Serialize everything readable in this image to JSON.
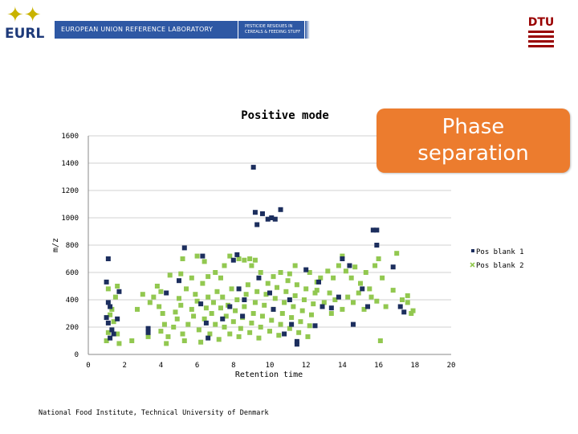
{
  "header": {
    "logo_text": "EURL",
    "banner_main": "EUROPEAN UNION REFERENCE LABORATORY",
    "banner_side_line1": "PESTICIDE RESIDUES IN",
    "banner_side_line2": "CEREALS & FEEDING STUFF",
    "org_logo_text": "DTU"
  },
  "callout": {
    "line1": "Phase",
    "line2": "separation"
  },
  "footer": {
    "text": "National Food Institute, Technical University of Denmark"
  },
  "colors": {
    "banner": "#2e58a4",
    "callout": "#ec7c2e",
    "series1": "#1c2e5e",
    "series2": "#92c850",
    "dtu": "#990000"
  },
  "chart_data": {
    "type": "scatter",
    "title": "Positive mode",
    "xlabel": "Retention time",
    "ylabel": "m/z",
    "xlim": [
      0,
      20
    ],
    "ylim": [
      0,
      1600
    ],
    "xticks": [
      "0",
      "2",
      "4",
      "6",
      "8",
      "10",
      "12",
      "14",
      "16",
      "18",
      "20"
    ],
    "yticks": [
      "0",
      "200",
      "400",
      "600",
      "800",
      "1000",
      "1200",
      "1400",
      "1600"
    ],
    "grid": "horizontal",
    "legend_position": "right",
    "series": [
      {
        "name": "Pos blank 1",
        "marker": "square",
        "color": "#1c2e5e",
        "points": [
          [
            1.1,
            700
          ],
          [
            1.0,
            530
          ],
          [
            1.1,
            380
          ],
          [
            1.2,
            350
          ],
          [
            1.0,
            270
          ],
          [
            1.1,
            230
          ],
          [
            1.2,
            120
          ],
          [
            1.3,
            180
          ],
          [
            1.4,
            150
          ],
          [
            1.6,
            260
          ],
          [
            1.7,
            460
          ],
          [
            3.3,
            190
          ],
          [
            3.3,
            160
          ],
          [
            4.3,
            450
          ],
          [
            5.0,
            540
          ],
          [
            5.3,
            780
          ],
          [
            6.3,
            720
          ],
          [
            6.2,
            370
          ],
          [
            6.5,
            230
          ],
          [
            6.6,
            120
          ],
          [
            7.8,
            350
          ],
          [
            8.0,
            690
          ],
          [
            8.2,
            730
          ],
          [
            8.3,
            480
          ],
          [
            8.5,
            280
          ],
          [
            8.6,
            400
          ],
          [
            9.1,
            1370
          ],
          [
            9.2,
            1040
          ],
          [
            9.3,
            950
          ],
          [
            9.4,
            560
          ],
          [
            9.6,
            1030
          ],
          [
            9.9,
            990
          ],
          [
            10.1,
            1000
          ],
          [
            10.3,
            990
          ],
          [
            10.6,
            1060
          ],
          [
            10.0,
            450
          ],
          [
            10.2,
            330
          ],
          [
            11.1,
            400
          ],
          [
            11.2,
            220
          ],
          [
            11.5,
            95
          ],
          [
            11.5,
            75
          ],
          [
            12.0,
            620
          ],
          [
            12.7,
            530
          ],
          [
            12.9,
            350
          ],
          [
            13.4,
            340
          ],
          [
            14.0,
            700
          ],
          [
            14.4,
            650
          ],
          [
            14.6,
            220
          ],
          [
            15.1,
            480
          ],
          [
            15.7,
            910
          ],
          [
            15.9,
            910
          ],
          [
            15.9,
            800
          ],
          [
            16.8,
            640
          ],
          [
            17.2,
            350
          ],
          [
            17.4,
            310
          ],
          [
            10.8,
            150
          ],
          [
            7.4,
            260
          ],
          [
            12.5,
            210
          ],
          [
            13.8,
            420
          ],
          [
            15.4,
            350
          ]
        ]
      },
      {
        "name": "Pos blank 2",
        "marker": "x",
        "color": "#92c850",
        "points": [
          [
            1.0,
            100
          ],
          [
            1.1,
            160
          ],
          [
            1.2,
            290
          ],
          [
            1.3,
            330
          ],
          [
            1.4,
            240
          ],
          [
            1.5,
            420
          ],
          [
            1.6,
            150
          ],
          [
            1.7,
            80
          ],
          [
            1.1,
            480
          ],
          [
            1.6,
            500
          ],
          [
            3.3,
            130
          ],
          [
            3.6,
            420
          ],
          [
            3.8,
            500
          ],
          [
            4.0,
            460
          ],
          [
            3.9,
            350
          ],
          [
            4.1,
            300
          ],
          [
            4.2,
            220
          ],
          [
            4.0,
            170
          ],
          [
            4.3,
            80
          ],
          [
            4.4,
            130
          ],
          [
            4.7,
            200
          ],
          [
            4.8,
            310
          ],
          [
            4.9,
            260
          ],
          [
            5.0,
            410
          ],
          [
            5.1,
            360
          ],
          [
            5.2,
            150
          ],
          [
            5.3,
            100
          ],
          [
            5.4,
            480
          ],
          [
            5.5,
            220
          ],
          [
            5.2,
            700
          ],
          [
            5.7,
            330
          ],
          [
            5.8,
            280
          ],
          [
            5.9,
            440
          ],
          [
            6.0,
            390
          ],
          [
            6.1,
            180
          ],
          [
            6.2,
            90
          ],
          [
            6.3,
            520
          ],
          [
            6.4,
            260
          ],
          [
            6.5,
            340
          ],
          [
            6.6,
            420
          ],
          [
            6.7,
            150
          ],
          [
            6.8,
            300
          ],
          [
            6.9,
            380
          ],
          [
            7.0,
            220
          ],
          [
            7.1,
            460
          ],
          [
            7.2,
            110
          ],
          [
            7.3,
            340
          ],
          [
            7.4,
            420
          ],
          [
            7.5,
            200
          ],
          [
            7.6,
            280
          ],
          [
            7.7,
            360
          ],
          [
            7.8,
            150
          ],
          [
            7.9,
            480
          ],
          [
            8.0,
            240
          ],
          [
            8.1,
            320
          ],
          [
            8.2,
            400
          ],
          [
            8.3,
            130
          ],
          [
            8.4,
            190
          ],
          [
            8.5,
            270
          ],
          [
            8.6,
            350
          ],
          [
            8.7,
            440
          ],
          [
            8.8,
            510
          ],
          [
            8.9,
            160
          ],
          [
            9.0,
            230
          ],
          [
            9.1,
            300
          ],
          [
            9.2,
            380
          ],
          [
            9.3,
            460
          ],
          [
            9.4,
            120
          ],
          [
            9.5,
            200
          ],
          [
            9.6,
            280
          ],
          [
            9.7,
            360
          ],
          [
            9.8,
            440
          ],
          [
            9.9,
            520
          ],
          [
            10.0,
            170
          ],
          [
            10.1,
            250
          ],
          [
            10.2,
            330
          ],
          [
            10.3,
            410
          ],
          [
            10.4,
            490
          ],
          [
            10.5,
            140
          ],
          [
            10.6,
            220
          ],
          [
            10.7,
            300
          ],
          [
            10.8,
            380
          ],
          [
            10.9,
            460
          ],
          [
            11.0,
            540
          ],
          [
            11.1,
            190
          ],
          [
            11.2,
            270
          ],
          [
            11.3,
            350
          ],
          [
            11.4,
            430
          ],
          [
            11.5,
            510
          ],
          [
            11.6,
            160
          ],
          [
            11.7,
            240
          ],
          [
            11.8,
            320
          ],
          [
            11.9,
            400
          ],
          [
            12.0,
            480
          ],
          [
            12.1,
            130
          ],
          [
            12.2,
            210
          ],
          [
            12.3,
            290
          ],
          [
            12.4,
            370
          ],
          [
            12.5,
            450
          ],
          [
            12.6,
            530
          ],
          [
            8.3,
            700
          ],
          [
            8.6,
            690
          ],
          [
            8.9,
            700
          ],
          [
            9.2,
            690
          ],
          [
            9.0,
            650
          ],
          [
            10.6,
            600
          ],
          [
            11.4,
            650
          ],
          [
            12.2,
            600
          ],
          [
            12.6,
            470
          ],
          [
            5.7,
            560
          ],
          [
            6.0,
            720
          ],
          [
            6.4,
            680
          ],
          [
            7.0,
            600
          ],
          [
            7.5,
            650
          ],
          [
            7.8,
            720
          ],
          [
            13.2,
            610
          ],
          [
            13.5,
            560
          ],
          [
            13.8,
            650
          ],
          [
            14.0,
            720
          ],
          [
            14.2,
            610
          ],
          [
            14.5,
            560
          ],
          [
            14.7,
            640
          ],
          [
            15.0,
            520
          ],
          [
            15.3,
            600
          ],
          [
            15.5,
            480
          ],
          [
            15.8,
            650
          ],
          [
            16.0,
            700
          ],
          [
            16.2,
            560
          ],
          [
            13.0,
            380
          ],
          [
            13.3,
            450
          ],
          [
            13.6,
            400
          ],
          [
            14.0,
            330
          ],
          [
            14.3,
            420
          ],
          [
            14.6,
            380
          ],
          [
            14.9,
            450
          ],
          [
            15.2,
            330
          ],
          [
            15.6,
            420
          ],
          [
            15.9,
            390
          ],
          [
            16.1,
            100
          ],
          [
            16.4,
            350
          ],
          [
            16.8,
            470
          ],
          [
            17.0,
            740
          ],
          [
            17.3,
            400
          ],
          [
            17.6,
            380
          ],
          [
            17.8,
            300
          ],
          [
            17.6,
            430
          ],
          [
            17.9,
            320
          ],
          [
            2.7,
            330
          ],
          [
            2.4,
            100
          ],
          [
            3.0,
            440
          ],
          [
            3.4,
            380
          ],
          [
            13.4,
            300
          ],
          [
            12.8,
            560
          ],
          [
            11.1,
            590
          ],
          [
            9.5,
            600
          ],
          [
            10.2,
            570
          ],
          [
            7.3,
            560
          ],
          [
            6.6,
            570
          ],
          [
            4.5,
            580
          ],
          [
            5.1,
            590
          ]
        ]
      }
    ]
  }
}
